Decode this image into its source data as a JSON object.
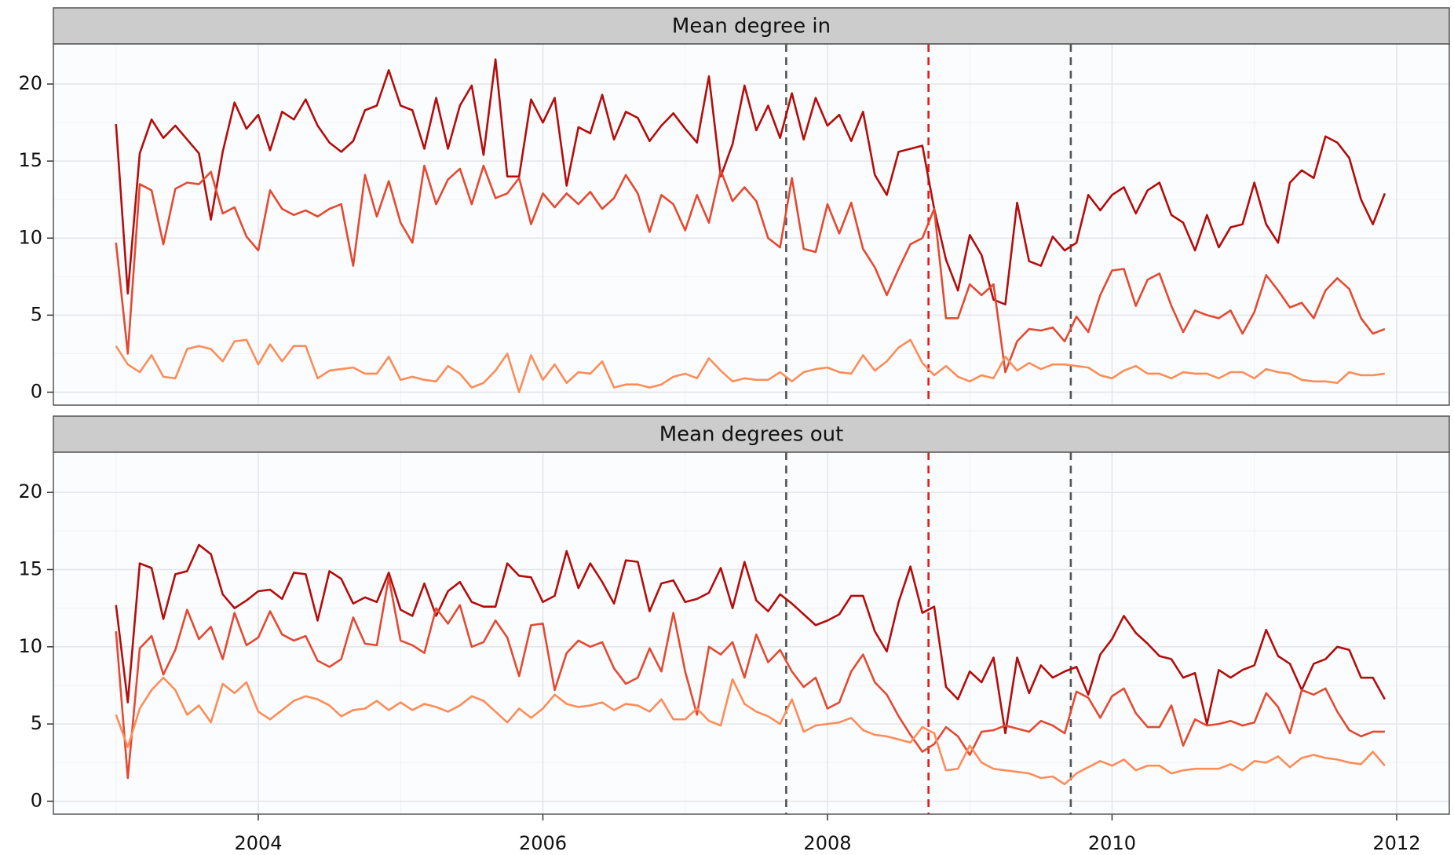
{
  "chart_data": [
    {
      "type": "line",
      "title": "Mean degree in",
      "x": [
        2003,
        2003.083,
        2003.167,
        2003.25,
        2003.333,
        2003.417,
        2003.5,
        2003.583,
        2003.667,
        2003.75,
        2003.833,
        2003.917,
        2004,
        2004.083,
        2004.167,
        2004.25,
        2004.333,
        2004.417,
        2004.5,
        2004.583,
        2004.667,
        2004.75,
        2004.833,
        2004.917,
        2005,
        2005.083,
        2005.167,
        2005.25,
        2005.333,
        2005.417,
        2005.5,
        2005.583,
        2005.667,
        2005.75,
        2005.833,
        2005.917,
        2006,
        2006.083,
        2006.167,
        2006.25,
        2006.333,
        2006.417,
        2006.5,
        2006.583,
        2006.667,
        2006.75,
        2006.833,
        2006.917,
        2007,
        2007.083,
        2007.167,
        2007.25,
        2007.333,
        2007.417,
        2007.5,
        2007.583,
        2007.667,
        2007.75,
        2007.833,
        2007.917,
        2008,
        2008.083,
        2008.167,
        2008.25,
        2008.333,
        2008.417,
        2008.5,
        2008.583,
        2008.667,
        2008.75,
        2008.833,
        2008.917,
        2009,
        2009.083,
        2009.167,
        2009.25,
        2009.333,
        2009.417,
        2009.5,
        2009.583,
        2009.667,
        2009.75,
        2009.833,
        2009.917,
        2010,
        2010.083,
        2010.167,
        2010.25,
        2010.333,
        2010.417,
        2010.5,
        2010.583,
        2010.667,
        2010.75,
        2010.833,
        2010.917,
        2011,
        2011.083,
        2011.167,
        2011.25,
        2011.333,
        2011.417,
        2011.5,
        2011.583,
        2011.667,
        2011.75,
        2011.833,
        2011.917
      ],
      "series": [
        {
          "color": "#b30d0d",
          "values": [
            17.4,
            6.4,
            15.5,
            17.7,
            16.5,
            17.3,
            16.4,
            15.5,
            11.2,
            15.6,
            18.8,
            17.1,
            18.0,
            15.7,
            18.2,
            17.7,
            19.0,
            17.3,
            16.2,
            15.6,
            16.3,
            18.3,
            18.6,
            20.9,
            18.6,
            18.3,
            15.8,
            19.1,
            15.8,
            18.6,
            19.9,
            15.4,
            21.6,
            14.0,
            14.0,
            19.0,
            17.5,
            19.1,
            13.4,
            17.2,
            16.8,
            19.3,
            16.4,
            18.2,
            17.8,
            16.3,
            17.3,
            18.1,
            17.1,
            16.2,
            20.5,
            14.0,
            16.1,
            19.9,
            17.0,
            18.6,
            16.5,
            19.4,
            16.4,
            19.1,
            17.3,
            18.0,
            16.3,
            18.2,
            14.1,
            12.8,
            15.6,
            15.8,
            16.0,
            11.9,
            8.6,
            6.6,
            10.2,
            8.9,
            6.0,
            5.7,
            12.3,
            8.5,
            8.2,
            10.1,
            9.2,
            9.7,
            12.8,
            11.8,
            12.8,
            13.3,
            11.6,
            13.1,
            13.6,
            11.5,
            11.0,
            9.2,
            11.5,
            9.4,
            10.7,
            10.9,
            13.6,
            10.9,
            9.7,
            13.6,
            14.4,
            13.9,
            16.6,
            16.2,
            15.2,
            12.5,
            10.9,
            12.9
          ]
        },
        {
          "color": "#e34a33",
          "values": [
            9.7,
            2.5,
            13.5,
            13.1,
            9.6,
            13.2,
            13.6,
            13.5,
            14.3,
            11.6,
            12.0,
            10.1,
            9.2,
            13.1,
            11.9,
            11.5,
            11.8,
            11.4,
            11.9,
            12.2,
            8.2,
            14.1,
            11.4,
            13.7,
            11.0,
            9.7,
            14.7,
            12.2,
            13.8,
            14.5,
            12.2,
            14.7,
            12.6,
            12.9,
            13.9,
            10.9,
            12.9,
            12.0,
            12.9,
            12.2,
            13.0,
            11.9,
            12.6,
            14.1,
            12.9,
            10.4,
            12.8,
            12.2,
            10.5,
            12.8,
            11.0,
            14.4,
            12.4,
            13.3,
            12.4,
            10.0,
            9.4,
            13.9,
            9.3,
            9.1,
            12.2,
            10.3,
            12.3,
            9.3,
            8.1,
            6.3,
            8.0,
            9.6,
            10.0,
            11.9,
            4.8,
            4.8,
            7.0,
            6.3,
            7.0,
            1.3,
            3.3,
            4.1,
            4.0,
            4.2,
            3.3,
            4.9,
            3.9,
            6.3,
            7.9,
            8.0,
            5.6,
            7.3,
            7.7,
            5.6,
            3.9,
            5.3,
            5.0,
            4.8,
            5.3,
            3.8,
            5.2,
            7.6,
            6.6,
            5.5,
            5.8,
            4.8,
            6.6,
            7.4,
            6.7,
            4.8,
            3.8,
            4.1
          ]
        },
        {
          "color": "#fc8d59",
          "values": [
            3.0,
            1.8,
            1.3,
            2.4,
            1.0,
            0.9,
            2.8,
            3.0,
            2.8,
            2.0,
            3.3,
            3.4,
            1.8,
            3.1,
            2.0,
            3.0,
            3.0,
            0.9,
            1.4,
            1.5,
            1.6,
            1.2,
            1.2,
            2.3,
            0.8,
            1.0,
            0.8,
            0.7,
            1.7,
            1.2,
            0.3,
            0.6,
            1.4,
            2.5,
            0.0,
            2.4,
            0.8,
            1.8,
            0.6,
            1.3,
            1.2,
            2.0,
            0.3,
            0.5,
            0.5,
            0.3,
            0.5,
            1.0,
            1.2,
            0.9,
            2.2,
            1.4,
            0.7,
            0.9,
            0.8,
            0.8,
            1.3,
            0.7,
            1.3,
            1.5,
            1.6,
            1.3,
            1.2,
            2.4,
            1.4,
            2.0,
            2.9,
            3.4,
            1.9,
            1.1,
            1.7,
            1.0,
            0.7,
            1.1,
            0.9,
            2.3,
            1.4,
            1.9,
            1.5,
            1.8,
            1.8,
            1.7,
            1.6,
            1.1,
            0.9,
            1.4,
            1.7,
            1.2,
            1.2,
            0.9,
            1.3,
            1.2,
            1.2,
            0.9,
            1.3,
            1.3,
            0.9,
            1.5,
            1.3,
            1.2,
            0.8,
            0.7,
            0.7,
            0.6,
            1.3,
            1.1,
            1.1,
            1.2
          ]
        }
      ],
      "xlim": [
        2002.56,
        2012.37
      ],
      "ylim": [
        -0.84,
        22.6
      ],
      "xticks": [
        2004,
        2006,
        2008,
        2010,
        2012
      ],
      "yticks": [
        0,
        5,
        10,
        15,
        20
      ],
      "minor_xticks": [
        2003,
        2005,
        2007,
        2009,
        2011
      ],
      "minor_yticks": [
        2.5,
        7.5,
        12.5,
        17.5
      ],
      "show_x_labels": false,
      "grid": true,
      "vlines": [
        {
          "x": 2007.71,
          "color": "#555555"
        },
        {
          "x": 2008.71,
          "color": "#e8161b"
        },
        {
          "x": 2009.71,
          "color": "#555555"
        }
      ]
    },
    {
      "type": "line",
      "title": "Mean degrees out",
      "x": [
        2003,
        2003.083,
        2003.167,
        2003.25,
        2003.333,
        2003.417,
        2003.5,
        2003.583,
        2003.667,
        2003.75,
        2003.833,
        2003.917,
        2004,
        2004.083,
        2004.167,
        2004.25,
        2004.333,
        2004.417,
        2004.5,
        2004.583,
        2004.667,
        2004.75,
        2004.833,
        2004.917,
        2005,
        2005.083,
        2005.167,
        2005.25,
        2005.333,
        2005.417,
        2005.5,
        2005.583,
        2005.667,
        2005.75,
        2005.833,
        2005.917,
        2006,
        2006.083,
        2006.167,
        2006.25,
        2006.333,
        2006.417,
        2006.5,
        2006.583,
        2006.667,
        2006.75,
        2006.833,
        2006.917,
        2007,
        2007.083,
        2007.167,
        2007.25,
        2007.333,
        2007.417,
        2007.5,
        2007.583,
        2007.667,
        2007.75,
        2007.833,
        2007.917,
        2008,
        2008.083,
        2008.167,
        2008.25,
        2008.333,
        2008.417,
        2008.5,
        2008.583,
        2008.667,
        2008.75,
        2008.833,
        2008.917,
        2009,
        2009.083,
        2009.167,
        2009.25,
        2009.333,
        2009.417,
        2009.5,
        2009.583,
        2009.667,
        2009.75,
        2009.833,
        2009.917,
        2010,
        2010.083,
        2010.167,
        2010.25,
        2010.333,
        2010.417,
        2010.5,
        2010.583,
        2010.667,
        2010.75,
        2010.833,
        2010.917,
        2011,
        2011.083,
        2011.167,
        2011.25,
        2011.333,
        2011.417,
        2011.5,
        2011.583,
        2011.667,
        2011.75,
        2011.833,
        2011.917
      ],
      "series": [
        {
          "color": "#b30d0d",
          "values": [
            12.7,
            6.4,
            15.4,
            15.1,
            11.8,
            14.7,
            14.9,
            16.6,
            16.0,
            13.4,
            12.5,
            13.0,
            13.6,
            13.7,
            13.1,
            14.8,
            14.7,
            11.7,
            14.9,
            14.4,
            12.8,
            13.2,
            12.9,
            14.8,
            12.4,
            12.0,
            14.1,
            12.0,
            13.6,
            14.2,
            12.9,
            12.6,
            12.6,
            15.4,
            14.6,
            14.5,
            12.9,
            13.3,
            16.2,
            13.8,
            15.4,
            14.2,
            12.8,
            15.6,
            15.5,
            12.3,
            14.1,
            14.3,
            12.9,
            13.1,
            13.5,
            15.1,
            12.5,
            15.5,
            13.0,
            12.3,
            13.4,
            12.8,
            12.1,
            11.4,
            11.7,
            12.1,
            13.3,
            13.3,
            11.0,
            9.7,
            12.9,
            15.2,
            12.2,
            12.6,
            7.4,
            6.6,
            8.4,
            7.7,
            9.3,
            4.4,
            9.3,
            7.0,
            8.8,
            8.0,
            8.4,
            8.7,
            6.9,
            9.5,
            10.5,
            12.0,
            10.9,
            10.2,
            9.4,
            9.2,
            8.0,
            8.3,
            5.0,
            8.5,
            8.0,
            8.5,
            8.8,
            11.1,
            9.4,
            8.9,
            7.2,
            8.9,
            9.2,
            10.0,
            9.8,
            8.0,
            8.0,
            6.6
          ]
        },
        {
          "color": "#e34a33",
          "values": [
            11.0,
            1.5,
            9.9,
            10.7,
            8.2,
            9.8,
            12.4,
            10.5,
            11.3,
            9.2,
            12.2,
            10.1,
            10.6,
            12.3,
            10.8,
            10.4,
            10.7,
            9.1,
            8.7,
            9.2,
            11.9,
            10.2,
            10.1,
            14.5,
            10.4,
            10.1,
            9.6,
            12.5,
            11.5,
            12.7,
            10.0,
            10.3,
            11.7,
            10.6,
            8.1,
            11.4,
            11.5,
            7.2,
            9.6,
            10.4,
            10.0,
            10.3,
            8.6,
            7.6,
            8.0,
            9.9,
            8.4,
            12.2,
            8.4,
            5.6,
            10.0,
            9.5,
            10.3,
            8.0,
            10.8,
            9.0,
            9.8,
            8.4,
            7.4,
            8.0,
            6.0,
            6.4,
            8.4,
            9.5,
            7.7,
            6.9,
            5.5,
            4.3,
            3.2,
            3.7,
            4.8,
            4.2,
            3.0,
            4.5,
            4.6,
            4.9,
            4.7,
            4.5,
            5.2,
            4.9,
            4.4,
            7.1,
            6.7,
            5.4,
            6.8,
            7.3,
            5.7,
            4.8,
            4.8,
            6.2,
            3.6,
            5.3,
            4.9,
            5.0,
            5.2,
            4.9,
            5.1,
            7.0,
            6.1,
            4.4,
            7.2,
            6.9,
            7.3,
            5.8,
            4.6,
            4.2,
            4.5,
            4.5
          ]
        },
        {
          "color": "#fc8d59",
          "values": [
            5.6,
            3.5,
            6.0,
            7.2,
            8.0,
            7.2,
            5.6,
            6.2,
            5.1,
            7.6,
            7.0,
            7.7,
            5.8,
            5.3,
            5.9,
            6.5,
            6.8,
            6.6,
            6.2,
            5.5,
            5.9,
            6.0,
            6.5,
            5.9,
            6.4,
            5.9,
            6.3,
            6.1,
            5.8,
            6.2,
            6.8,
            6.5,
            5.8,
            5.1,
            6.0,
            5.4,
            6.0,
            6.9,
            6.3,
            6.1,
            6.2,
            6.4,
            5.9,
            6.3,
            6.2,
            5.8,
            6.6,
            5.3,
            5.3,
            6.0,
            5.2,
            4.9,
            7.9,
            6.3,
            5.8,
            5.5,
            5.0,
            6.6,
            4.5,
            4.9,
            5.0,
            5.1,
            5.4,
            4.6,
            4.3,
            4.2,
            4.0,
            3.8,
            4.8,
            4.4,
            2.0,
            2.1,
            3.6,
            2.5,
            2.1,
            2.0,
            1.9,
            1.8,
            1.5,
            1.6,
            1.1,
            1.8,
            2.2,
            2.6,
            2.3,
            2.7,
            2.0,
            2.3,
            2.3,
            1.8,
            2.0,
            2.1,
            2.1,
            2.1,
            2.4,
            2.0,
            2.6,
            2.5,
            2.9,
            2.2,
            2.8,
            3.0,
            2.8,
            2.7,
            2.5,
            2.4,
            3.2,
            2.3
          ]
        }
      ],
      "xlim": [
        2002.56,
        2012.37
      ],
      "ylim": [
        -0.84,
        22.6
      ],
      "xticks": [
        2004,
        2006,
        2008,
        2010,
        2012
      ],
      "yticks": [
        0,
        5,
        10,
        15,
        20
      ],
      "minor_xticks": [
        2003,
        2005,
        2007,
        2009,
        2011
      ],
      "minor_yticks": [
        2.5,
        7.5,
        12.5,
        17.5
      ],
      "show_x_labels": true,
      "grid": true,
      "vlines": [
        {
          "x": 2007.71,
          "color": "#555555"
        },
        {
          "x": 2008.71,
          "color": "#e8161b"
        },
        {
          "x": 2009.71,
          "color": "#555555"
        }
      ]
    }
  ]
}
